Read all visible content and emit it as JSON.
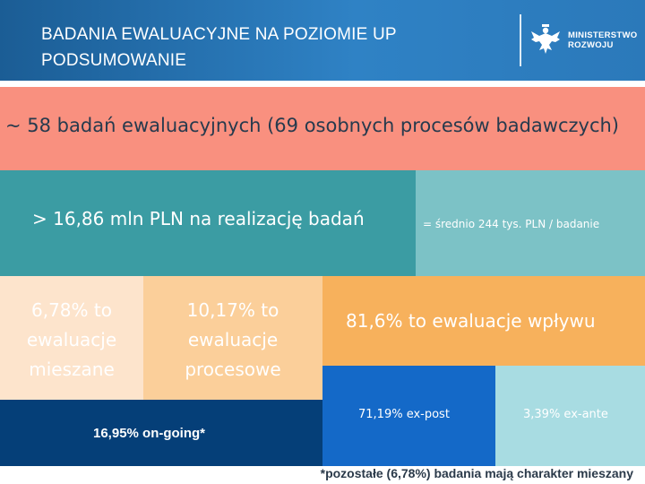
{
  "header": {
    "title_line1": "BADANIA EWALUACYJNE NA POZIOMIE UP",
    "title_line2": "PODSUMOWANIE",
    "logo_line1": "MINISTERSTWO",
    "logo_line2": "ROZWOJU",
    "logo_icon": "eagle-emblem-icon"
  },
  "stats": {
    "total_studies": "~ 58 badań ewaluacyjnych (69 osobnych procesów badawczych)",
    "budget": "> 16,86 mln PLN na realizację badań",
    "average": "= średnio 244 tys. PLN / badanie",
    "mixed_line1": "6,78% to",
    "mixed_line2": "ewaluacje",
    "mixed_line3": "mieszane",
    "process_line1": "10,17% to",
    "process_line2": "ewaluacje",
    "process_line3": "procesowe",
    "impact": "81,6% to ewaluacje wpływu",
    "ongoing": "16,95% on-going*",
    "expost": "71,19% ex-post",
    "exante": "3,39% ex-ante"
  },
  "footnote": "*pozostałe (6,78%) badania mają charakter mieszany",
  "colors": {
    "header": "#2b79ba",
    "salmon": "#f9907f",
    "teal": "#3b9ca3",
    "light_teal": "#7cc2c6",
    "peach": "#fde4cc",
    "light_orange": "#fbcf9a",
    "orange": "#f7b15c",
    "navy": "#053f78",
    "blue": "#1469c8",
    "pale_cyan": "#a8dce2"
  }
}
